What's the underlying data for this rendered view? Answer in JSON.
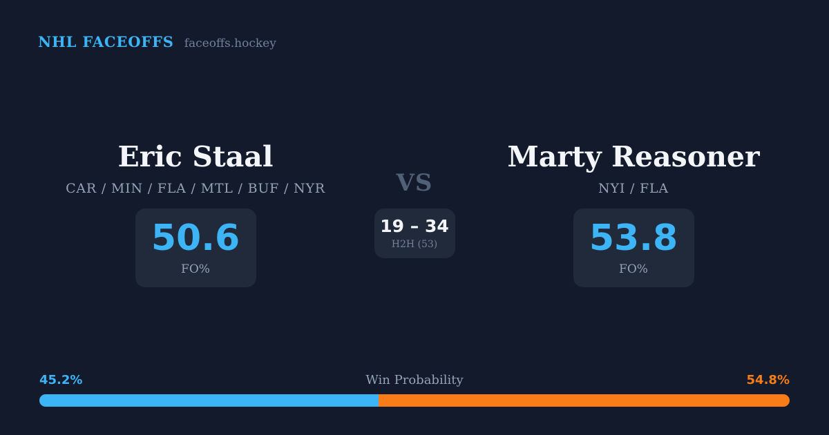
{
  "theme": {
    "background": "#121a2c",
    "card_background": "#202a3b",
    "accent_blue": "#3db4f5",
    "accent_orange": "#f87c17",
    "text_white": "#f3f5f9",
    "text_muted": "#95a3b8"
  },
  "header": {
    "brand": "NHL FACEOFFS",
    "site": "faceoffs.hockey"
  },
  "matchup": {
    "vs_label": "VS",
    "h2h": {
      "score": "19 – 34",
      "label": "H2H (53)"
    },
    "player_left": {
      "name": "Eric Staal",
      "teams": "CAR / MIN / FLA / MTL / BUF / NYR",
      "stat_value": "50.6",
      "stat_label": "FO%"
    },
    "player_right": {
      "name": "Marty Reasoner",
      "teams": "NYI / FLA",
      "stat_value": "53.8",
      "stat_label": "FO%"
    }
  },
  "win_probability": {
    "title": "Win Probability",
    "left_pct": 45.2,
    "right_pct": 54.8,
    "left_pct_label": "45.2%",
    "right_pct_label": "54.8%"
  },
  "chart_data": {
    "type": "bar",
    "layout": "horizontal-stacked-single-bar",
    "title": "Win Probability",
    "categories": [
      "Eric Staal",
      "Marty Reasoner"
    ],
    "values": [
      45.2,
      54.8
    ],
    "unit": "%",
    "colors": [
      "#3db4f5",
      "#f87c17"
    ],
    "related_stats": {
      "faceoff_pct": {
        "Eric Staal": 50.6,
        "Marty Reasoner": 53.8
      },
      "h2h_wins": {
        "Eric Staal": 19,
        "Marty Reasoner": 34
      },
      "h2h_total_faceoffs": 53
    }
  }
}
